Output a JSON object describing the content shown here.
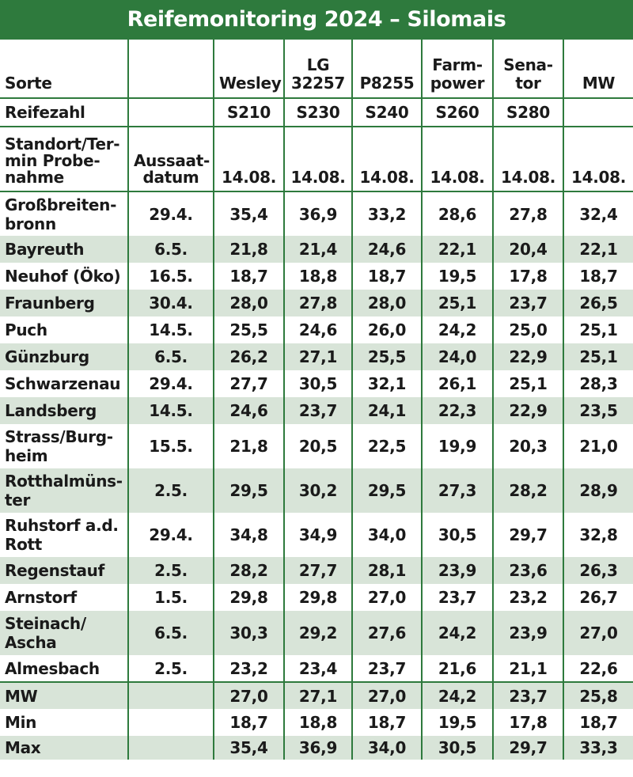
{
  "title": "Reifemonitoring 2024 – Silomais",
  "header": {
    "sorte_label": "Sorte",
    "varieties": [
      "Wesley",
      "LG 32257",
      "P8255",
      "Farm-power",
      "Sena-tor",
      "MW"
    ],
    "reifezahl_label": "Reifezahl",
    "reifezahlen": [
      "S210",
      "S230",
      "S240",
      "S260",
      "S280",
      ""
    ],
    "standort_label": "Standort/Ter-min Probe-nahme",
    "aussaat_label": "Aussaat-datum",
    "termine": [
      "14.08.",
      "14.08.",
      "14.08.",
      "14.08.",
      "14.08.",
      "14.08."
    ]
  },
  "rows": [
    {
      "location": "Großbreiten-bronn",
      "sowing": "29.4.",
      "values": [
        "35,4",
        "36,9",
        "33,2",
        "28,6",
        "27,8",
        "32,4"
      ]
    },
    {
      "location": "Bayreuth",
      "sowing": "6.5.",
      "values": [
        "21,8",
        "21,4",
        "24,6",
        "22,1",
        "20,4",
        "22,1"
      ]
    },
    {
      "location": "Neuhof (Öko)",
      "sowing": "16.5.",
      "values": [
        "18,7",
        "18,8",
        "18,7",
        "19,5",
        "17,8",
        "18,7"
      ]
    },
    {
      "location": "Fraunberg",
      "sowing": "30.4.",
      "values": [
        "28,0",
        "27,8",
        "28,0",
        "25,1",
        "23,7",
        "26,5"
      ]
    },
    {
      "location": "Puch",
      "sowing": "14.5.",
      "values": [
        "25,5",
        "24,6",
        "26,0",
        "24,2",
        "25,0",
        "25,1"
      ]
    },
    {
      "location": "Günzburg",
      "sowing": "6.5.",
      "values": [
        "26,2",
        "27,1",
        "25,5",
        "24,0",
        "22,9",
        "25,1"
      ]
    },
    {
      "location": "Schwarzenau",
      "sowing": "29.4.",
      "values": [
        "27,7",
        "30,5",
        "32,1",
        "26,1",
        "25,1",
        "28,3"
      ]
    },
    {
      "location": "Landsberg",
      "sowing": "14.5.",
      "values": [
        "24,6",
        "23,7",
        "24,1",
        "22,3",
        "22,9",
        "23,5"
      ]
    },
    {
      "location": "Strass/Burg-heim",
      "sowing": "15.5.",
      "values": [
        "21,8",
        "20,5",
        "22,5",
        "19,9",
        "20,3",
        "21,0"
      ]
    },
    {
      "location": "Rotthalmüns-ter",
      "sowing": "2.5.",
      "values": [
        "29,5",
        "30,2",
        "29,5",
        "27,3",
        "28,2",
        "28,9"
      ]
    },
    {
      "location": "Ruhstorf a.d. Rott",
      "sowing": "29.4.",
      "values": [
        "34,8",
        "34,9",
        "34,0",
        "30,5",
        "29,7",
        "32,8"
      ]
    },
    {
      "location": "Regenstauf",
      "sowing": "2.5.",
      "values": [
        "28,2",
        "27,7",
        "28,1",
        "23,9",
        "23,6",
        "26,3"
      ]
    },
    {
      "location": "Arnstorf",
      "sowing": "1.5.",
      "values": [
        "29,8",
        "29,8",
        "27,0",
        "23,7",
        "23,2",
        "26,7"
      ]
    },
    {
      "location": "Steinach/ Ascha",
      "sowing": "6.5.",
      "values": [
        "30,3",
        "29,2",
        "27,6",
        "24,2",
        "23,9",
        "27,0"
      ]
    },
    {
      "location": "Almesbach",
      "sowing": "2.5.",
      "values": [
        "23,2",
        "23,4",
        "23,7",
        "21,6",
        "21,1",
        "22,6"
      ]
    }
  ],
  "summary": [
    {
      "label": "MW",
      "values": [
        "27,0",
        "27,1",
        "27,0",
        "24,2",
        "23,7",
        "25,8"
      ]
    },
    {
      "label": "Min",
      "values": [
        "18,7",
        "18,8",
        "18,7",
        "19,5",
        "17,8",
        "18,7"
      ]
    },
    {
      "label": "Max",
      "values": [
        "35,4",
        "36,9",
        "34,0",
        "30,5",
        "29,7",
        "33,3"
      ]
    }
  ]
}
